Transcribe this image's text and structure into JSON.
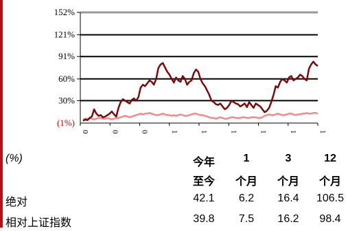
{
  "chart_data": {
    "type": "line",
    "y_ticks": [
      "152%",
      "121%",
      "91%",
      "60%",
      "30%",
      "(1%)"
    ],
    "y_values": [
      152,
      121,
      91,
      60,
      30,
      -1
    ],
    "ylim": [
      -1,
      152
    ],
    "x_ticks": [
      "0",
      "0",
      "0",
      "1",
      "1",
      "1",
      "1",
      "1",
      "1"
    ],
    "grid": true,
    "series": [
      {
        "color": "#7a0a0a",
        "values": [
          2,
          4,
          3,
          6,
          8,
          18,
          12,
          9,
          10,
          7,
          8,
          10,
          12,
          15,
          11,
          8,
          20,
          28,
          32,
          30,
          28,
          26,
          31,
          33,
          30,
          35,
          48,
          52,
          50,
          54,
          58,
          56,
          52,
          60,
          75,
          80,
          82,
          76,
          70,
          66,
          60,
          55,
          62,
          58,
          56,
          64,
          60,
          52,
          56,
          58,
          68,
          73,
          70,
          60,
          54,
          50,
          44,
          38,
          30,
          28,
          25,
          24,
          26,
          22,
          18,
          20,
          24,
          30,
          28,
          26,
          25,
          22,
          24,
          26,
          21,
          28,
          24,
          20,
          26,
          24,
          22,
          18,
          14,
          16,
          20,
          28,
          38,
          50,
          48,
          56,
          60,
          58,
          55,
          62,
          64,
          58,
          60,
          62,
          66,
          64,
          60,
          58,
          74,
          80,
          84,
          80,
          78
        ]
      },
      {
        "color": "#f08a8a",
        "values": [
          4,
          5,
          5,
          6,
          5,
          4,
          5,
          6,
          6,
          5,
          5,
          6,
          5,
          4,
          5,
          6,
          6,
          7,
          8,
          9,
          8,
          7,
          8,
          9,
          10,
          11,
          12,
          11,
          12,
          12,
          13,
          12,
          11,
          10,
          10,
          11,
          12,
          11,
          10,
          10,
          9,
          10,
          9,
          10,
          11,
          10,
          9,
          9,
          10,
          11,
          12,
          12,
          11,
          10,
          10,
          9,
          8,
          7,
          6,
          6,
          5,
          6,
          7,
          6,
          5,
          5,
          6,
          7,
          7,
          6,
          6,
          6,
          7,
          7,
          6,
          6,
          7,
          7,
          7,
          6,
          6,
          7,
          9,
          10,
          11,
          10,
          10,
          11,
          12,
          11,
          10,
          10,
          11,
          12,
          12,
          11,
          10,
          11,
          11,
          12,
          12,
          13,
          12,
          12,
          13,
          13,
          12
        ]
      }
    ]
  },
  "table": {
    "unit": "(%)",
    "headers_line1": [
      "今年",
      "1",
      "3",
      "12"
    ],
    "headers_line2": [
      "至今",
      "个月",
      "个月",
      "个月"
    ],
    "rows": [
      {
        "label": "绝对",
        "values": [
          "42.1",
          "6.2",
          "16.4",
          "106.5"
        ]
      },
      {
        "label": "相对上证指数",
        "values": [
          "39.8",
          "7.5",
          "16.2",
          "98.4"
        ]
      }
    ]
  }
}
